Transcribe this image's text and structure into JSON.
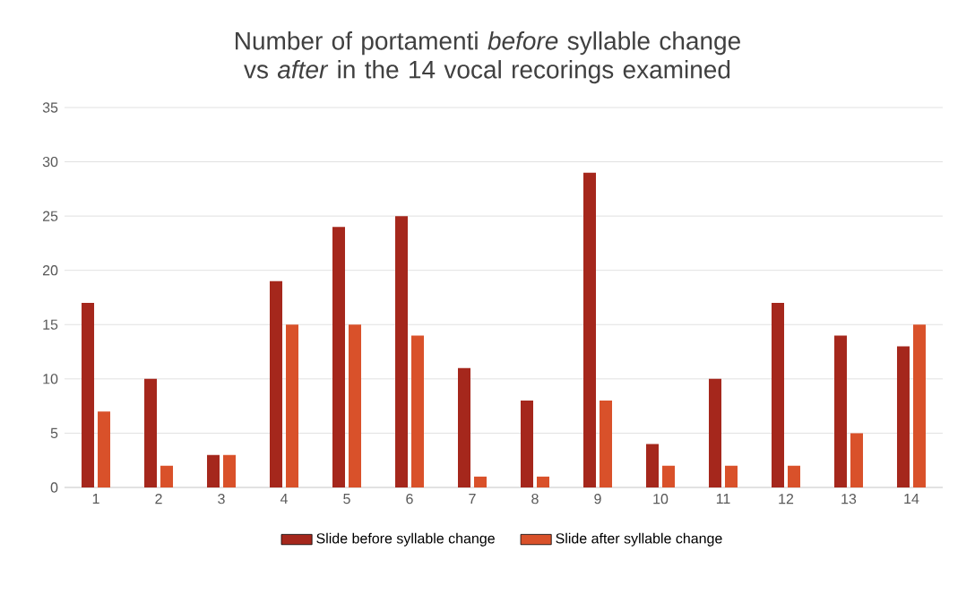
{
  "chart_data": {
    "type": "bar",
    "title": "Number of portamenti *before* syllable change vs *after* in the 14 vocal recorings examined",
    "categories": [
      "1",
      "2",
      "3",
      "4",
      "5",
      "6",
      "7",
      "8",
      "9",
      "10",
      "11",
      "12",
      "13",
      "14"
    ],
    "series": [
      {
        "name": "Slide before syllable change",
        "color": "#a5271c",
        "values": [
          17,
          10,
          3,
          19,
          24,
          25,
          11,
          8,
          29,
          4,
          10,
          17,
          14,
          13
        ]
      },
      {
        "name": "Slide after syllable change",
        "color": "#d9512a",
        "values": [
          7,
          2,
          3,
          15,
          15,
          14,
          1,
          1,
          8,
          2,
          2,
          2,
          5,
          15
        ]
      }
    ],
    "ylim": [
      0,
      35
    ],
    "yticks": [
      0,
      5,
      10,
      15,
      20,
      25,
      30,
      35
    ],
    "grid": "y",
    "legend": "bottom"
  }
}
